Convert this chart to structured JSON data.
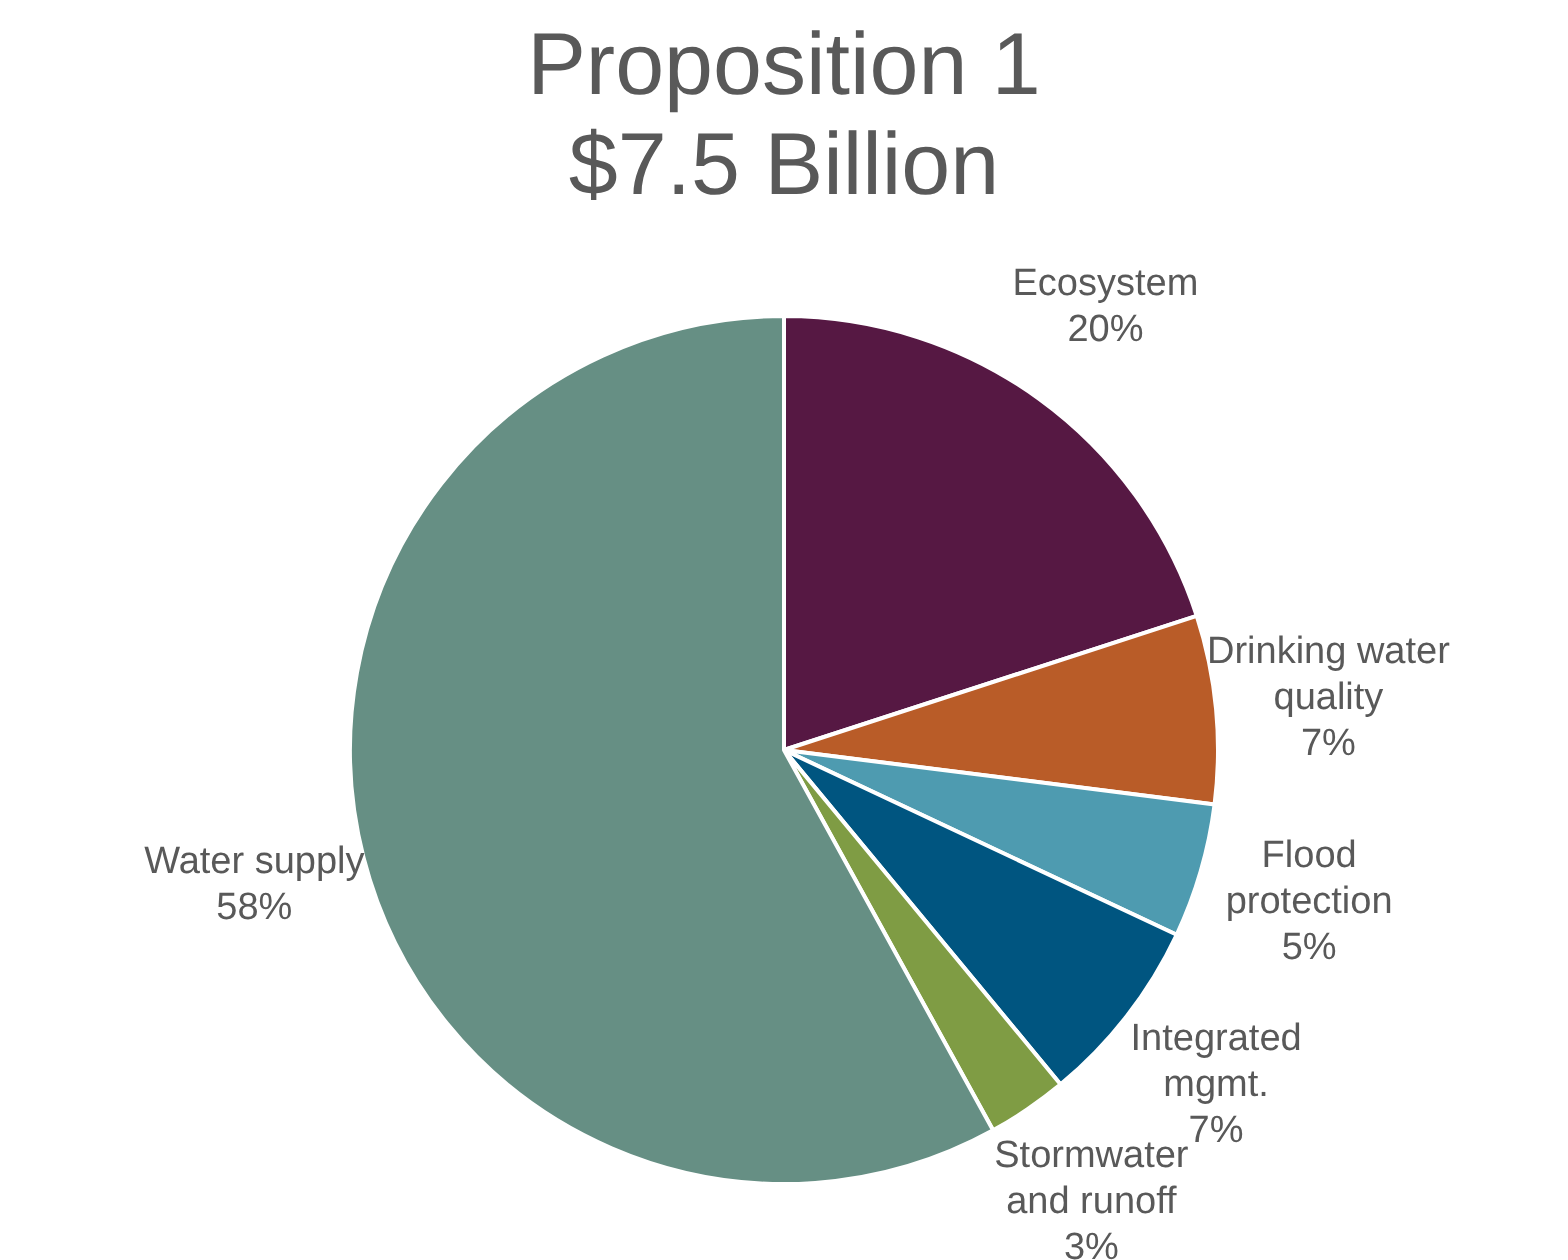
{
  "chart_data": {
    "type": "pie",
    "title": "Proposition 1",
    "subtitle": "$7.5 Billion",
    "categories": [
      "Ecosystem",
      "Drinking water quality",
      "Flood protection",
      "Integrated mgmt.",
      "Stormwater and runoff",
      "Water supply"
    ],
    "values": [
      20,
      7,
      5,
      7,
      3,
      58
    ],
    "value_labels": [
      "20%",
      "7%",
      "5%",
      "7%",
      "3%",
      "58%"
    ],
    "colors": [
      "#561843",
      "#b95c28",
      "#4e9bb0",
      "#005580",
      "#7f9c44",
      "#668f84"
    ],
    "legend": false
  }
}
